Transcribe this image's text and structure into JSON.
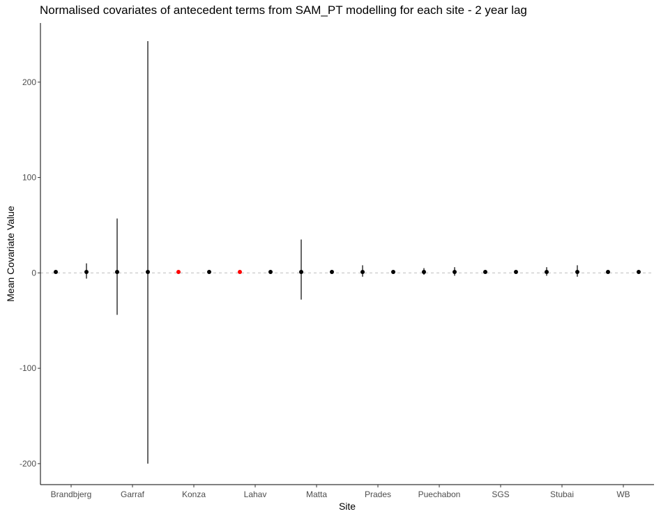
{
  "chart_data": {
    "type": "scatter",
    "title": "Normalised covariates of antecedent terms from SAM_PT modelling for each site - 2 year lag",
    "xlabel": "Site",
    "ylabel": "Mean Covariate Value",
    "categories": [
      "Brandbjerg",
      "Garraf",
      "Konza",
      "Lahav",
      "Matta",
      "Prades",
      "Puechabon",
      "SGS",
      "Stubai",
      "WB"
    ],
    "yticks": [
      -200,
      -100,
      0,
      100,
      200
    ],
    "ylim": [
      -222,
      262
    ],
    "reference_line": 0,
    "grid": false,
    "colors": {
      "default": "#000000",
      "highlight": "#ff0000",
      "reference": "#bfbfbf"
    },
    "series": [
      {
        "points": [
          {
            "site": "Brandbjerg",
            "offset": -0.25,
            "y": 1,
            "lo": 0,
            "hi": 2,
            "color": "#000000"
          },
          {
            "site": "Brandbjerg",
            "offset": 0.25,
            "y": 1,
            "lo": -6,
            "hi": 10,
            "color": "#000000"
          },
          {
            "site": "Garraf",
            "offset": -0.25,
            "y": 1,
            "lo": -44,
            "hi": 57,
            "color": "#000000"
          },
          {
            "site": "Garraf",
            "offset": 0.25,
            "y": 1,
            "lo": -200,
            "hi": 243,
            "color": "#000000"
          },
          {
            "site": "Konza",
            "offset": -0.25,
            "y": 1,
            "lo": 0,
            "hi": 2,
            "color": "#ff0000"
          },
          {
            "site": "Konza",
            "offset": 0.25,
            "y": 1,
            "lo": -1,
            "hi": 3,
            "color": "#000000"
          },
          {
            "site": "Lahav",
            "offset": -0.25,
            "y": 1,
            "lo": 0,
            "hi": 2,
            "color": "#ff0000"
          },
          {
            "site": "Lahav",
            "offset": 0.25,
            "y": 1,
            "lo": -1,
            "hi": 3,
            "color": "#000000"
          },
          {
            "site": "Matta",
            "offset": -0.25,
            "y": 1,
            "lo": -28,
            "hi": 35,
            "color": "#000000"
          },
          {
            "site": "Matta",
            "offset": 0.25,
            "y": 1,
            "lo": -1,
            "hi": 3,
            "color": "#000000"
          },
          {
            "site": "Prades",
            "offset": -0.25,
            "y": 1,
            "lo": -4,
            "hi": 8,
            "color": "#000000"
          },
          {
            "site": "Prades",
            "offset": 0.25,
            "y": 1,
            "lo": 0,
            "hi": 2,
            "color": "#000000"
          },
          {
            "site": "Puechabon",
            "offset": -0.25,
            "y": 1,
            "lo": -2,
            "hi": 5,
            "color": "#000000"
          },
          {
            "site": "Puechabon",
            "offset": 0.25,
            "y": 1,
            "lo": -3,
            "hi": 6,
            "color": "#000000"
          },
          {
            "site": "SGS",
            "offset": -0.25,
            "y": 1,
            "lo": -1,
            "hi": 3,
            "color": "#000000"
          },
          {
            "site": "SGS",
            "offset": 0.25,
            "y": 1,
            "lo": -1,
            "hi": 3,
            "color": "#000000"
          },
          {
            "site": "Stubai",
            "offset": -0.25,
            "y": 1,
            "lo": -3,
            "hi": 6,
            "color": "#000000"
          },
          {
            "site": "Stubai",
            "offset": 0.25,
            "y": 1,
            "lo": -4,
            "hi": 8,
            "color": "#000000"
          },
          {
            "site": "WB",
            "offset": -0.25,
            "y": 1,
            "lo": -1,
            "hi": 3,
            "color": "#000000"
          },
          {
            "site": "WB",
            "offset": 0.25,
            "y": 1,
            "lo": -1,
            "hi": 3,
            "color": "#000000"
          }
        ]
      }
    ]
  }
}
